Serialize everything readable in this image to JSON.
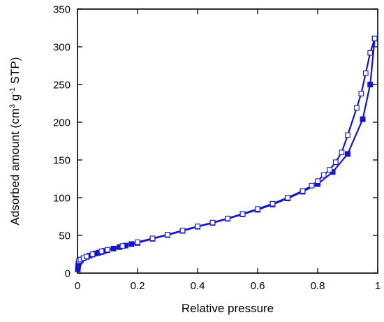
{
  "chart_data": {
    "type": "line",
    "xlabel": "Relative pressure",
    "ylabel": {
      "pre": "Adsorbed amount (cm",
      "sup1": "3",
      "mid": " g",
      "sup2": "-1",
      "post": " STP)"
    },
    "xlim": [
      0,
      1
    ],
    "ylim": [
      0,
      350
    ],
    "x_ticks": [
      "0",
      "0.2",
      "0.4",
      "0.6",
      "0.8",
      "1"
    ],
    "y_ticks": [
      "0",
      "50",
      "100",
      "150",
      "200",
      "250",
      "300",
      "350"
    ],
    "grid": false,
    "color": "#1515c8",
    "series": [
      {
        "marker": "filled-square",
        "x": [
          0.001,
          0.002,
          0.003,
          0.005,
          0.008,
          0.012,
          0.02,
          0.03,
          0.04,
          0.05,
          0.06,
          0.07,
          0.08,
          0.09,
          0.1,
          0.12,
          0.14,
          0.16,
          0.18,
          0.2,
          0.25,
          0.3,
          0.35,
          0.4,
          0.45,
          0.5,
          0.55,
          0.6,
          0.65,
          0.7,
          0.75,
          0.8,
          0.85,
          0.9,
          0.95,
          0.975,
          0.99
        ],
        "y": [
          5,
          9,
          12,
          14,
          16,
          17.5,
          19.5,
          21.5,
          23,
          24.5,
          26,
          27,
          28,
          29.5,
          30.5,
          32.5,
          34.5,
          36.5,
          38.5,
          40,
          45.5,
          50.5,
          56,
          61.5,
          66.5,
          72,
          78,
          84,
          91,
          99,
          108,
          118,
          134,
          158,
          204,
          250,
          311
        ]
      },
      {
        "marker": "open-square",
        "x": [
          0.005,
          0.01,
          0.02,
          0.03,
          0.05,
          0.08,
          0.1,
          0.15,
          0.2,
          0.25,
          0.3,
          0.35,
          0.4,
          0.45,
          0.5,
          0.55,
          0.6,
          0.65,
          0.7,
          0.75,
          0.78,
          0.8,
          0.82,
          0.84,
          0.86,
          0.88,
          0.9,
          0.93,
          0.945,
          0.96,
          0.975,
          0.99
        ],
        "y": [
          16,
          18,
          20,
          22,
          25,
          29,
          31,
          36,
          41,
          46,
          51,
          56.5,
          62,
          67,
          72.5,
          78.5,
          85,
          92,
          100,
          109,
          116,
          122,
          130,
          137,
          147,
          160,
          183,
          219,
          238,
          265,
          292,
          311
        ]
      }
    ]
  }
}
